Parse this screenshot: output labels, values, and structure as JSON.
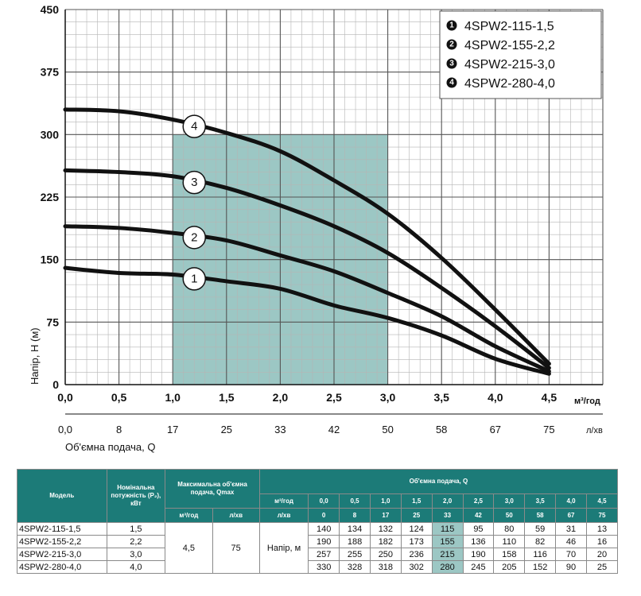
{
  "chart_data": {
    "type": "line",
    "ylabel": "Напір, Н (м)",
    "xlabel": "Об'ємна подача, Q",
    "x_unit": "м³/год",
    "x2_unit": "л/хв",
    "yticks": [
      "0",
      "75",
      "150",
      "225",
      "300",
      "375",
      "450"
    ],
    "xticks": [
      "0,0",
      "0,5",
      "1,0",
      "1,5",
      "2,0",
      "2,5",
      "3,0",
      "3,5",
      "4,0",
      "4,5"
    ],
    "x2ticks": [
      "0,0",
      "8",
      "17",
      "25",
      "33",
      "42",
      "50",
      "58",
      "67",
      "75"
    ],
    "ylim": [
      0,
      450
    ],
    "xlim": [
      0,
      5
    ],
    "grid": true,
    "legend_position": "top-right",
    "shaded_range": [
      1.0,
      3.0
    ],
    "x": [
      0,
      0.5,
      1.0,
      1.5,
      2.0,
      2.5,
      3.0,
      3.5,
      4.0,
      4.5
    ],
    "series": [
      {
        "marker": "1",
        "name": "4SPW2-115-1,5",
        "values": [
          140,
          134,
          132,
          124,
          115,
          95,
          80,
          59,
          31,
          13
        ],
        "label_x": 1.2
      },
      {
        "marker": "2",
        "name": "4SPW2-155-2,2",
        "values": [
          190,
          188,
          182,
          173,
          155,
          136,
          110,
          82,
          46,
          16
        ],
        "label_x": 1.2
      },
      {
        "marker": "3",
        "name": "4SPW2-215-3,0",
        "values": [
          257,
          255,
          250,
          236,
          215,
          190,
          158,
          116,
          70,
          20
        ],
        "label_x": 1.2
      },
      {
        "marker": "4",
        "name": "4SPW2-280-4,0",
        "values": [
          330,
          328,
          318,
          302,
          280,
          245,
          205,
          152,
          90,
          25
        ],
        "label_x": 1.2
      }
    ],
    "colors": {
      "curve": "#111111",
      "shade": "#9cc7c4",
      "table_header": "#1c7b78"
    }
  },
  "table": {
    "head_model": "Модель",
    "head_power": "Номінальна потужність (P₂), кВт",
    "head_qmax": "Максимальна об'ємна подача, Qmax",
    "head_flow": "Об'ємна подача, Q",
    "unit_m3h": "м³/год",
    "unit_lmin": "л/хв",
    "flow_m3h": [
      "0,0",
      "0,5",
      "1,0",
      "1,5",
      "2,0",
      "2,5",
      "3,0",
      "3,5",
      "4,0",
      "4,5"
    ],
    "flow_lmin": [
      "0",
      "8",
      "17",
      "25",
      "33",
      "42",
      "50",
      "58",
      "67",
      "75"
    ],
    "qmax_m3h": "4,5",
    "qmax_lmin": "75",
    "head_label": "Напір, м",
    "rows": [
      {
        "model": "4SPW2-115-1,5",
        "power": "1,5",
        "heads": [
          "140",
          "134",
          "132",
          "124",
          "115",
          "95",
          "80",
          "59",
          "31",
          "13"
        ]
      },
      {
        "model": "4SPW2-155-2,2",
        "power": "2,2",
        "heads": [
          "190",
          "188",
          "182",
          "173",
          "155",
          "136",
          "110",
          "82",
          "46",
          "16"
        ]
      },
      {
        "model": "4SPW2-215-3,0",
        "power": "3,0",
        "heads": [
          "257",
          "255",
          "250",
          "236",
          "215",
          "190",
          "158",
          "116",
          "70",
          "20"
        ]
      },
      {
        "model": "4SPW2-280-4,0",
        "power": "4,0",
        "heads": [
          "330",
          "328",
          "318",
          "302",
          "280",
          "245",
          "205",
          "152",
          "90",
          "25"
        ]
      }
    ]
  }
}
